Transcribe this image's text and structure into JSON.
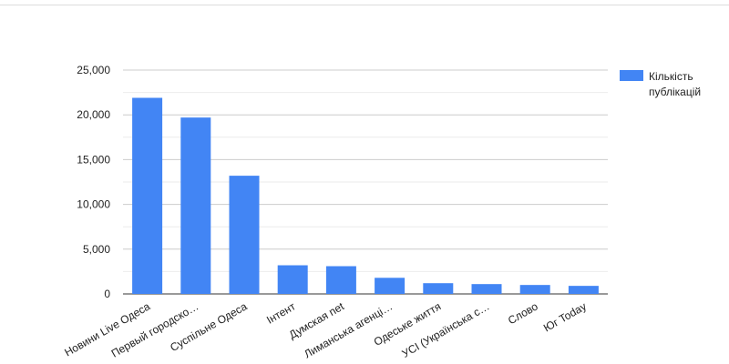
{
  "chart_data": {
    "type": "bar",
    "categories": [
      "Новини Live Одеса",
      "Первый городско…",
      "Суспільне Одеса",
      "Інтент",
      "Думская net",
      "Лиманська агенці…",
      "Одеське життя",
      "УСІ (Українська с…",
      "Слово",
      "Юг Today"
    ],
    "series": [
      {
        "name": "Кількість публікацій",
        "color": "#4285f4",
        "values": [
          21900,
          19700,
          13200,
          3200,
          3100,
          1800,
          1200,
          1100,
          1000,
          900
        ]
      }
    ],
    "ylim": [
      0,
      25000
    ],
    "yticks": [
      0,
      {
        "value": 5000,
        "label": "5,000"
      },
      {
        "value": 10000,
        "label": "10,000"
      },
      {
        "value": 15000,
        "label": "15,000"
      },
      {
        "value": 20000,
        "label": "20,000"
      },
      {
        "value": 25000,
        "label": "25,000"
      }
    ],
    "minor_yticks": [
      2500,
      7500,
      12500,
      17500,
      22500
    ],
    "grid": true,
    "legend": "right"
  }
}
